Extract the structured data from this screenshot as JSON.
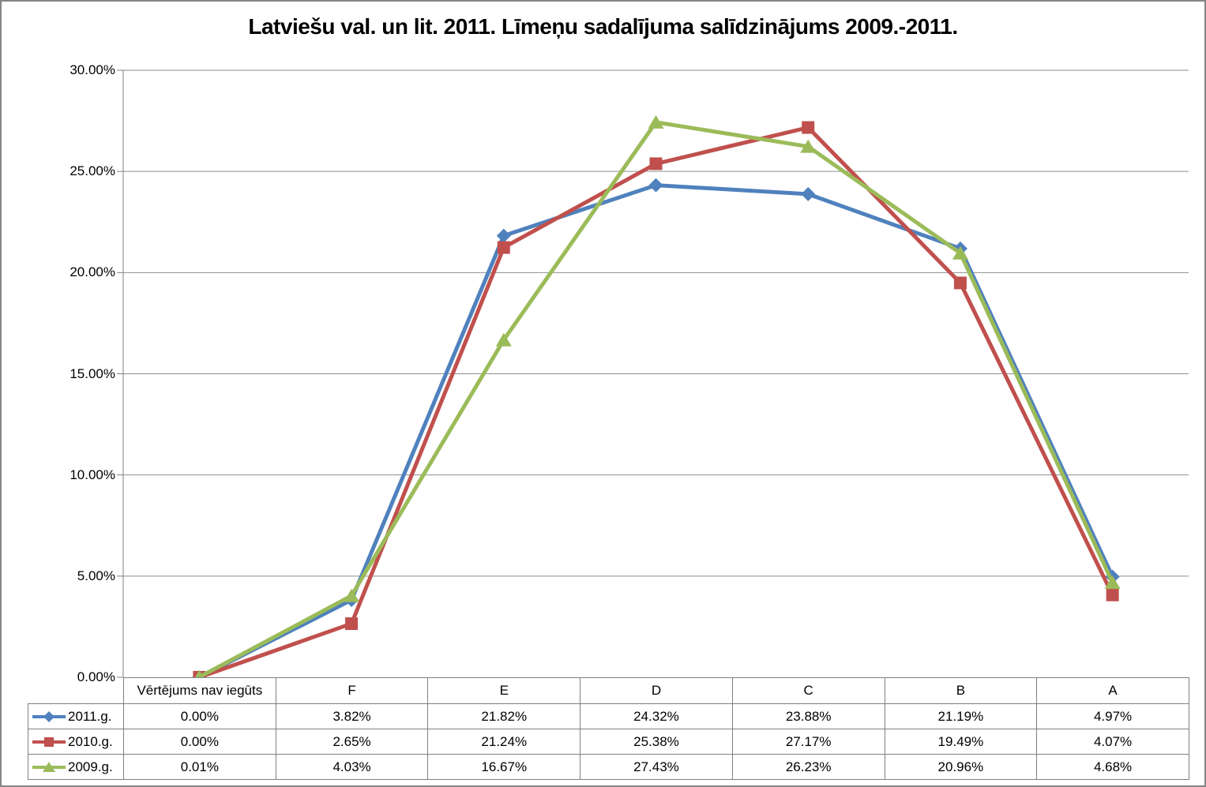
{
  "chart_data": {
    "type": "line",
    "title": "Latviešu val. un lit. 2011. Līmeņu sadalījuma salīdzinājums 2009.-2011.",
    "categories": [
      "Vērtējums nav iegūts",
      "F",
      "E",
      "D",
      "C",
      "B",
      "A"
    ],
    "series": [
      {
        "name": "2011.g.",
        "color": "#4F81BD",
        "marker": "diamond",
        "values": [
          0.0,
          3.82,
          21.82,
          24.32,
          23.88,
          21.19,
          4.97
        ]
      },
      {
        "name": "2010.g.",
        "color": "#C0504D",
        "marker": "square",
        "values": [
          0.0,
          2.65,
          21.24,
          25.38,
          27.17,
          19.49,
          4.07
        ]
      },
      {
        "name": "2009.g.",
        "color": "#9BBB59",
        "marker": "triangle",
        "values": [
          0.01,
          4.03,
          16.67,
          27.43,
          26.23,
          20.96,
          4.68
        ]
      }
    ],
    "y_ticks": [
      {
        "value": 30,
        "label": "30.00%"
      },
      {
        "value": 25,
        "label": "25.00%"
      },
      {
        "value": 20,
        "label": "20.00%"
      },
      {
        "value": 15,
        "label": "15.00%"
      },
      {
        "value": 10,
        "label": "10.00%"
      },
      {
        "value": 5,
        "label": "5.00%"
      },
      {
        "value": 0,
        "label": "0.00%"
      }
    ],
    "ylim": [
      0,
      30
    ],
    "grid": true,
    "value_format": "percent2",
    "legend_position": "table-left-column"
  }
}
